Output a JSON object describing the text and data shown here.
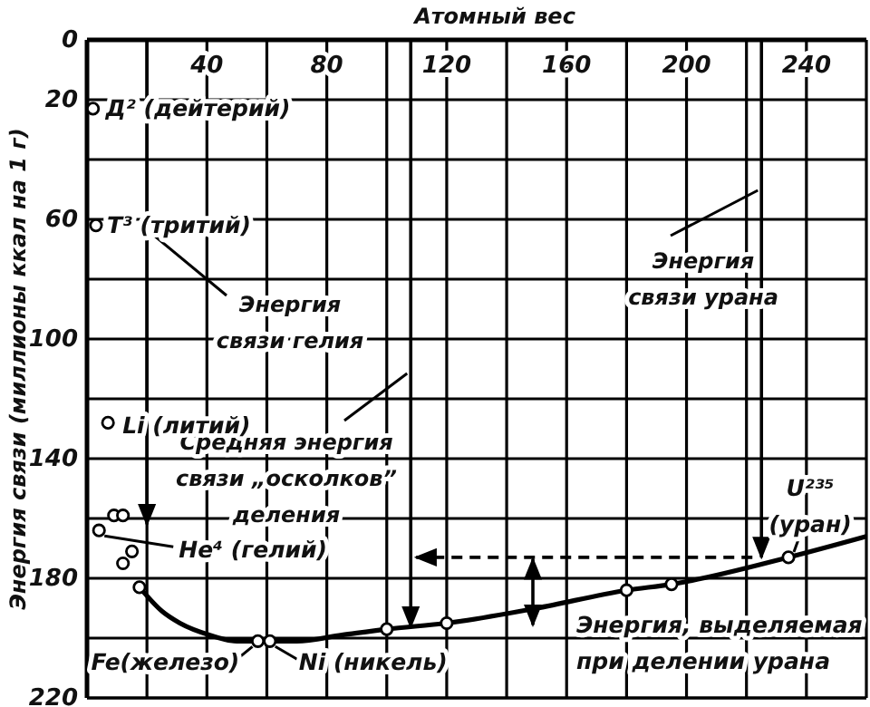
{
  "chart_data": {
    "type": "scatter",
    "xlabel": "Атомный вес",
    "ylabel": "Энергия связи (миллионы ккал на 1 г)",
    "xlim": [
      0,
      260
    ],
    "ylim": [
      220,
      0
    ],
    "xticks": [
      {
        "value": 20,
        "label": null
      },
      40,
      {
        "value": 60,
        "label": null
      },
      80,
      {
        "value": 100,
        "label": null
      },
      120,
      {
        "value": 140,
        "label": null
      },
      160,
      {
        "value": 180,
        "label": null
      },
      200,
      {
        "value": 220,
        "label": null
      },
      240
    ],
    "yticks": [
      0,
      20,
      {
        "value": 40,
        "label": null
      },
      60,
      {
        "value": 80,
        "label": null
      },
      100,
      {
        "value": 120,
        "label": null
      },
      140,
      {
        "value": 160,
        "label": null
      },
      180,
      {
        "value": 200,
        "label": null
      },
      220
    ],
    "grid": true,
    "marker": "circle",
    "series": [
      {
        "type": "line",
        "marker": "none",
        "color": "#000000",
        "x": [
          17.5,
          25,
          31,
          41,
          50,
          57,
          70,
          85,
          100,
          120,
          150,
          180,
          195,
          234,
          260
        ],
        "values": [
          183,
          191,
          195,
          199,
          201,
          201,
          201,
          199,
          197,
          195,
          190,
          184,
          182,
          173,
          166
        ]
      },
      {
        "color": "#000000",
        "x": [
          2,
          3,
          7,
          4,
          9,
          12,
          12,
          15,
          17.5,
          57,
          61,
          100,
          120,
          180,
          195,
          234
        ],
        "values": [
          23,
          62,
          128,
          164,
          159,
          159,
          175,
          171,
          183,
          201,
          201,
          197,
          195,
          184,
          182,
          173
        ]
      }
    ],
    "ref_lines": [
      {
        "axis": "x",
        "value": 20,
        "label": "Энергия\nсвязи гелия"
      },
      {
        "axis": "x",
        "value": 108,
        "label": "Средняя энергия\nсвязи „осколков”\nделения"
      },
      {
        "axis": "x",
        "value": 225,
        "label": "Энергия\nсвязи урана"
      }
    ],
    "annotations": [
      {
        "text": "Д² (дейтерий)",
        "x": 2,
        "y": 23
      },
      {
        "text": "T³ (тритий)",
        "x": 3,
        "y": 62
      },
      {
        "text": "Li (литий)",
        "x": 7,
        "y": 128
      },
      {
        "text": "He⁴ (гелий)",
        "x": 4,
        "y": 164
      },
      {
        "text": "Fe(железо)",
        "x": 57,
        "y": 201
      },
      {
        "text": "Ni (никель)",
        "x": 61,
        "y": 201
      },
      {
        "text": "U²³⁵\n(уран)",
        "x": 234,
        "y": 173
      },
      "Энергия, выделяемая\nпри делении урана"
    ]
  }
}
